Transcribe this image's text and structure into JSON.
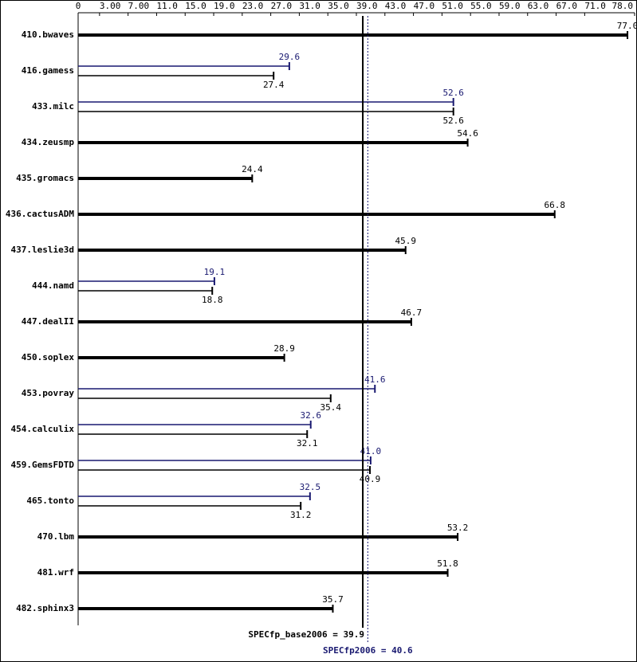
{
  "chart_data": {
    "type": "bar",
    "orientation": "horizontal",
    "categories": [
      "410.bwaves",
      "416.gamess",
      "433.milc",
      "434.zeusmp",
      "435.gromacs",
      "436.cactusADM",
      "437.leslie3d",
      "444.namd",
      "447.dealII",
      "450.soplex",
      "453.povray",
      "454.calculix",
      "459.GemsFDTD",
      "465.tonto",
      "470.lbm",
      "481.wrf",
      "482.sphinx3"
    ],
    "series": [
      {
        "color": "#000000",
        "values": [
          77.0,
          27.4,
          52.6,
          54.6,
          24.4,
          66.8,
          45.9,
          18.8,
          46.7,
          28.9,
          35.4,
          32.1,
          40.9,
          31.2,
          53.2,
          51.8,
          35.7
        ],
        "value_labels": [
          "77.0",
          "27.4",
          "52.6",
          "54.6",
          "24.4",
          "66.8",
          "45.9",
          "18.8",
          "46.7",
          "28.9",
          "35.4",
          "32.1",
          "40.9",
          "31.2",
          "53.2",
          "51.8",
          "35.7"
        ]
      },
      {
        "color": "#191970",
        "values": [
          null,
          29.6,
          52.6,
          null,
          null,
          null,
          null,
          19.1,
          null,
          null,
          41.6,
          32.6,
          41.0,
          32.5,
          null,
          null,
          null
        ],
        "value_labels": [
          null,
          "29.6",
          "52.6",
          null,
          null,
          null,
          null,
          "19.1",
          null,
          null,
          "41.6",
          "32.6",
          "41.0",
          "32.5",
          null,
          null,
          null
        ]
      }
    ],
    "xlim": [
      0,
      78
    ],
    "xticks": [
      0,
      {
        "value": 3,
        "label": "3.00"
      },
      {
        "value": 7,
        "label": "7.00"
      },
      {
        "value": 11,
        "label": "11.0"
      },
      {
        "value": 15,
        "label": "15.0"
      },
      {
        "value": 19,
        "label": "19.0"
      },
      {
        "value": 23,
        "label": "23.0"
      },
      {
        "value": 27,
        "label": "27.0"
      },
      {
        "value": 31,
        "label": "31.0"
      },
      {
        "value": 35,
        "label": "35.0"
      },
      {
        "value": 39,
        "label": "39.0"
      },
      {
        "value": 43,
        "label": "43.0"
      },
      {
        "value": 47,
        "label": "47.0"
      },
      {
        "value": 51,
        "label": "51.0"
      },
      {
        "value": 55,
        "label": "55.0"
      },
      {
        "value": 59,
        "label": "59.0"
      },
      {
        "value": 63,
        "label": "63.0"
      },
      {
        "value": 67,
        "label": "67.0"
      },
      {
        "value": 71,
        "label": "71.0"
      },
      {
        "value": 78,
        "label": "78.0"
      }
    ],
    "reference_lines": [
      {
        "value": 39.9,
        "label": "SPECfp_base2006 = 39.9",
        "color": "#000000",
        "dashed": false
      },
      {
        "value": 40.6,
        "label": "SPECfp2006 = 40.6",
        "color": "#191970",
        "dashed": true
      }
    ]
  }
}
